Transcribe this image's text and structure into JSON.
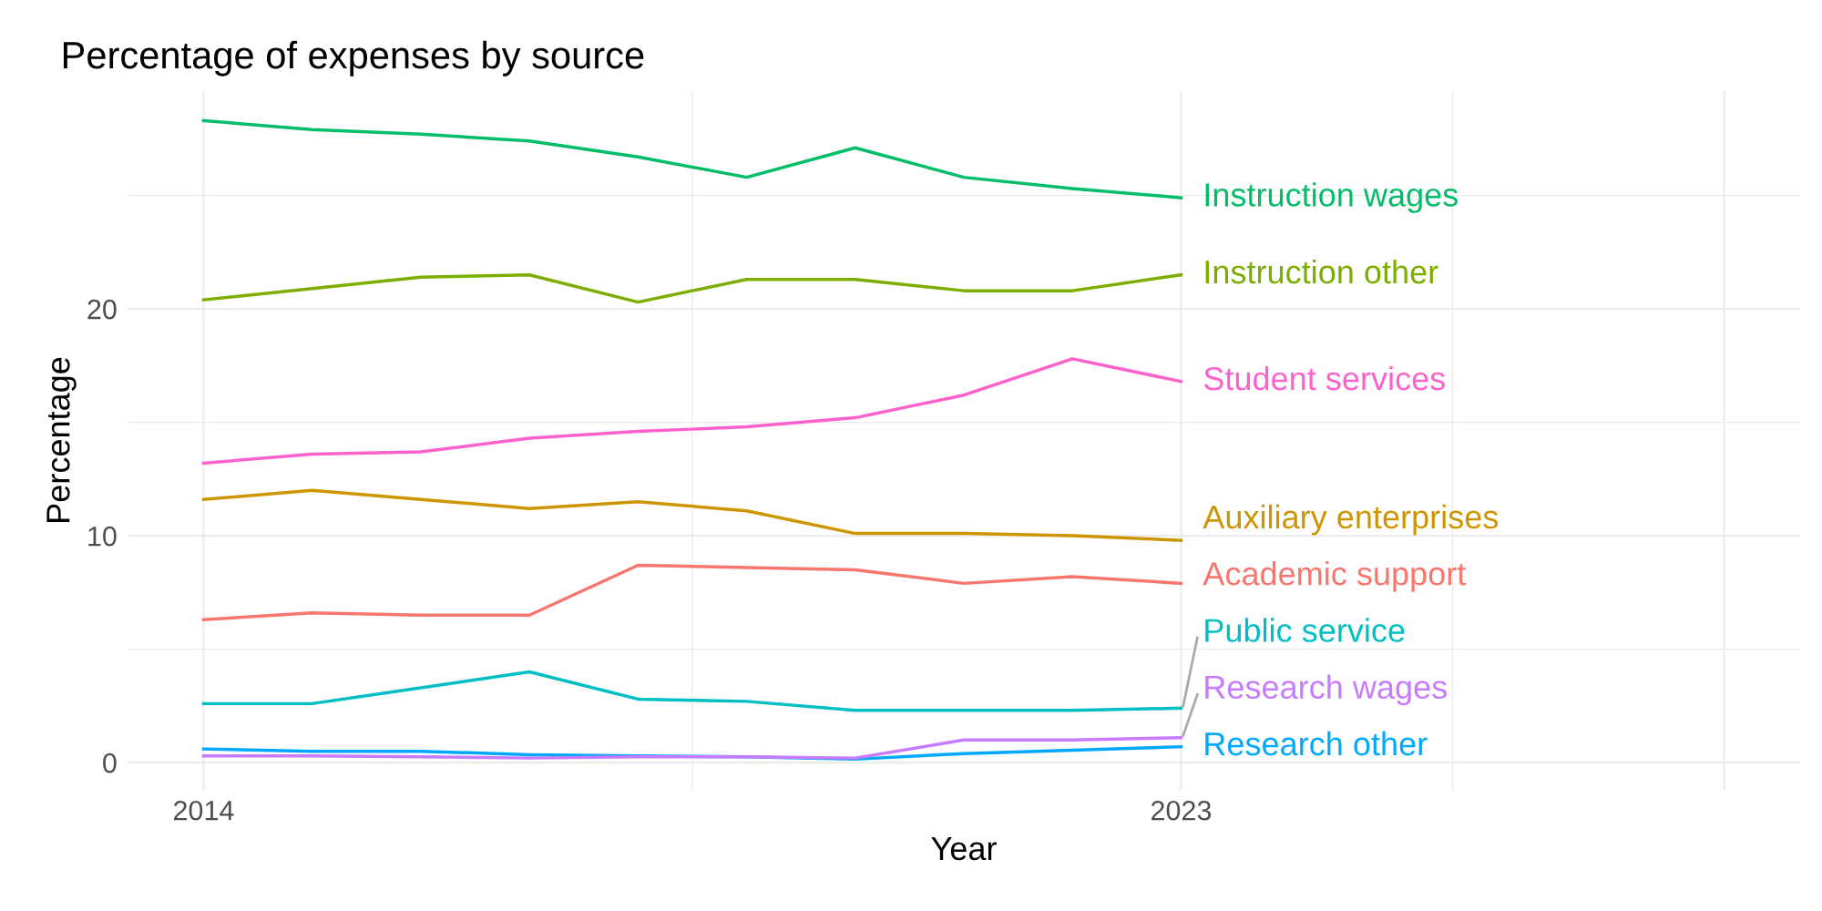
{
  "chart_data": {
    "type": "line",
    "title": "Percentage of expenses by source",
    "xlabel": "Year",
    "ylabel": "Percentage",
    "x": [
      2014,
      2015,
      2016,
      2017,
      2018,
      2019,
      2020,
      2021,
      2022,
      2023
    ],
    "xlim": [
      2013.3,
      2028.7
    ],
    "xticks": [
      2014,
      {
        "value": 2018.5,
        "label": null
      },
      2023,
      {
        "value": 2025.5,
        "label": null
      },
      {
        "value": 2028,
        "label": null
      }
    ],
    "ylim": [
      -1.2,
      29.6
    ],
    "yticks": [
      0,
      {
        "value": 5,
        "label": null
      },
      10,
      {
        "value": 15,
        "label": null
      },
      20,
      {
        "value": 25,
        "label": null
      }
    ],
    "grid": true,
    "legend": false,
    "series": [
      {
        "name": "Academic support",
        "color": "#f8766d",
        "values": [
          6.3,
          6.6,
          6.5,
          6.5,
          8.7,
          8.6,
          8.5,
          7.9,
          8.2,
          7.9
        ]
      },
      {
        "name": "Auxiliary enterprises",
        "color": "#cd9600",
        "values": [
          11.6,
          12.0,
          11.6,
          11.2,
          11.5,
          11.1,
          10.1,
          10.1,
          10.0,
          9.8
        ]
      },
      {
        "name": "Instruction other",
        "color": "#7cae00",
        "values": [
          20.4,
          20.9,
          21.4,
          21.5,
          20.3,
          21.3,
          21.3,
          20.8,
          20.8,
          21.5
        ]
      },
      {
        "name": "Instruction wages",
        "color": "#00be67",
        "values": [
          28.3,
          27.9,
          27.7,
          27.4,
          26.7,
          25.8,
          27.1,
          25.8,
          25.3,
          24.9
        ]
      },
      {
        "name": "Public service",
        "color": "#00bfc4",
        "values": [
          2.6,
          2.6,
          3.3,
          4.0,
          2.8,
          2.7,
          2.3,
          2.3,
          2.3,
          2.4
        ]
      },
      {
        "name": "Research other",
        "color": "#00a9ff",
        "values": [
          0.6,
          0.5,
          0.5,
          0.35,
          0.3,
          0.26,
          0.15,
          0.4,
          0.55,
          0.7
        ]
      },
      {
        "name": "Research wages",
        "color": "#c77cff",
        "values": [
          0.3,
          0.3,
          0.26,
          0.2,
          0.26,
          0.26,
          0.2,
          1.0,
          1.0,
          1.1
        ]
      },
      {
        "name": "Student services",
        "color": "#ff61cc",
        "values": [
          13.2,
          13.6,
          13.7,
          14.3,
          14.6,
          14.8,
          15.2,
          16.2,
          17.8,
          16.8
        ]
      }
    ]
  }
}
